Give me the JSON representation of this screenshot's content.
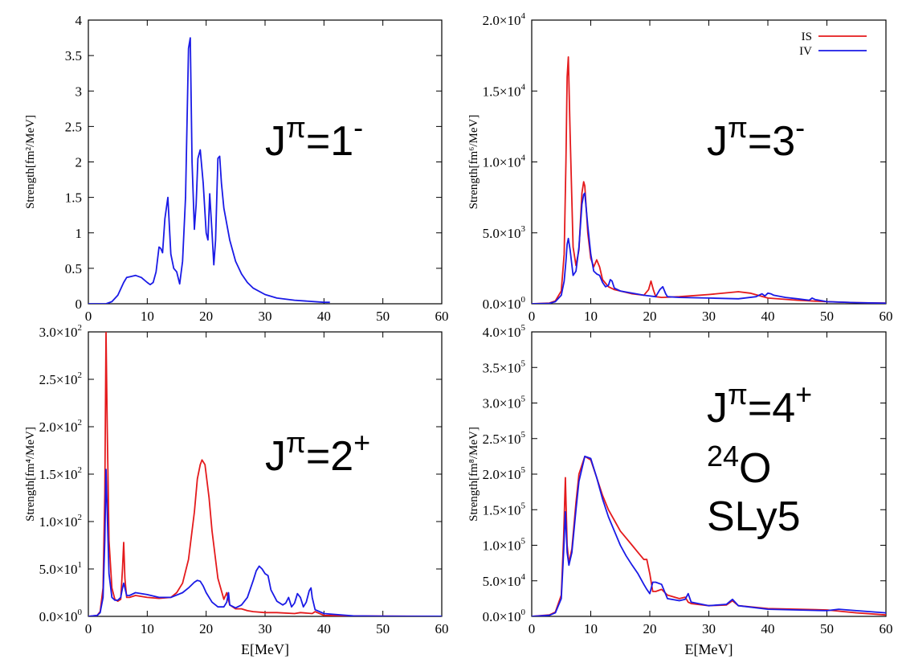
{
  "colors": {
    "IS": "#e41a1c",
    "IV": "#1a1ae6"
  },
  "chart_data": [
    {
      "type": "line",
      "annotation": {
        "main": "J",
        "sup1": "π",
        "eq": "=1",
        "sup2": "-"
      },
      "xlabel": "",
      "ylabel": "Strength[fm²/MeV]",
      "xlim": [
        0,
        60
      ],
      "ylim": [
        0,
        4
      ],
      "xticks": [
        0,
        10,
        20,
        30,
        40,
        50,
        60
      ],
      "yticks": [
        {
          "v": 0,
          "m": "0"
        },
        {
          "v": 0.5,
          "m": "0.5"
        },
        {
          "v": 1,
          "m": "1"
        },
        {
          "v": 1.5,
          "m": "1.5"
        },
        {
          "v": 2,
          "m": "2"
        },
        {
          "v": 2.5,
          "m": "2.5"
        },
        {
          "v": 3,
          "m": "3"
        },
        {
          "v": 3.5,
          "m": "3.5"
        },
        {
          "v": 4,
          "m": "4"
        }
      ],
      "legend": [],
      "series": [
        {
          "key": "IV",
          "x": [
            0,
            3,
            4,
            5,
            6,
            6.5,
            7,
            8,
            9,
            10,
            10.5,
            11,
            11.5,
            12,
            12.3,
            12.6,
            13,
            13.5,
            14,
            14.5,
            15,
            15.5,
            16,
            16.5,
            17,
            17.3,
            17.6,
            18,
            18.3,
            18.6,
            19,
            19.5,
            20,
            20.3,
            20.6,
            21,
            21.3,
            21.6,
            22,
            22.3,
            22.6,
            23,
            24,
            25,
            26,
            27,
            28,
            30,
            32,
            35,
            40,
            41
          ],
          "y": [
            0,
            0,
            0.03,
            0.12,
            0.3,
            0.37,
            0.38,
            0.4,
            0.37,
            0.3,
            0.27,
            0.3,
            0.45,
            0.8,
            0.78,
            0.72,
            1.2,
            1.5,
            0.7,
            0.5,
            0.45,
            0.28,
            0.6,
            1.5,
            3.6,
            3.75,
            2.0,
            1.05,
            1.4,
            2.05,
            2.17,
            1.7,
            1.0,
            0.9,
            1.55,
            1.0,
            0.55,
            0.9,
            2.05,
            2.08,
            1.7,
            1.35,
            0.9,
            0.6,
            0.42,
            0.3,
            0.22,
            0.13,
            0.08,
            0.05,
            0.02,
            0.02
          ]
        }
      ]
    },
    {
      "type": "line",
      "annotation": {
        "main": "J",
        "sup1": "π",
        "eq": "=3",
        "sup2": "-"
      },
      "xlabel": "",
      "ylabel": "Strength[fm⁶/MeV]",
      "xlim": [
        0,
        60
      ],
      "ylim": [
        0,
        20000
      ],
      "xticks": [
        0,
        10,
        20,
        30,
        40,
        50,
        60
      ],
      "yticks": [
        {
          "v": 0,
          "m": "0.0×10",
          "e": "0"
        },
        {
          "v": 5000,
          "m": "5.0×10",
          "e": "3"
        },
        {
          "v": 10000,
          "m": "1.0×10",
          "e": "4"
        },
        {
          "v": 15000,
          "m": "1.5×10",
          "e": "4"
        },
        {
          "v": 20000,
          "m": "2.0×10",
          "e": "4"
        }
      ],
      "legend": [
        "IS",
        "IV"
      ],
      "series": [
        {
          "key": "IS",
          "x": [
            0,
            3,
            4,
            5,
            5.5,
            5.8,
            6,
            6.2,
            6.5,
            7,
            7.5,
            8,
            8.5,
            8.8,
            9,
            9.5,
            10,
            10.5,
            11,
            11.5,
            12,
            13,
            14,
            15,
            17,
            19,
            19.8,
            20.2,
            20.6,
            21,
            22,
            25,
            30,
            35,
            37,
            40,
            45,
            50,
            55,
            60
          ],
          "y": [
            0,
            50,
            200,
            900,
            3500,
            10000,
            16000,
            17400,
            12000,
            4000,
            2700,
            3800,
            7800,
            8600,
            8300,
            5000,
            3200,
            2600,
            3100,
            2600,
            1700,
            1200,
            1000,
            900,
            700,
            600,
            1000,
            1600,
            1000,
            500,
            450,
            500,
            650,
            850,
            750,
            400,
            250,
            150,
            80,
            50
          ]
        },
        {
          "key": "IV",
          "x": [
            0,
            3,
            4,
            5,
            5.5,
            5.8,
            6,
            6.2,
            6.5,
            7,
            7.5,
            8,
            8.5,
            8.8,
            9,
            9.5,
            10,
            10.5,
            11,
            11.5,
            12,
            12.5,
            13,
            13.3,
            13.6,
            14,
            15,
            17,
            19,
            21,
            21.7,
            22.2,
            22.7,
            23,
            25,
            30,
            35,
            38,
            39,
            39.5,
            40,
            40.5,
            41,
            43,
            45,
            47,
            47.5,
            48,
            50,
            55,
            60
          ],
          "y": [
            0,
            30,
            150,
            600,
            1600,
            3000,
            4200,
            4600,
            3800,
            2000,
            2300,
            4000,
            7000,
            7700,
            7800,
            5500,
            3500,
            2300,
            2100,
            2000,
            1500,
            1200,
            1300,
            1700,
            1600,
            1100,
            900,
            750,
            600,
            500,
            1000,
            1200,
            700,
            500,
            450,
            400,
            350,
            500,
            700,
            550,
            750,
            700,
            600,
            450,
            350,
            250,
            400,
            300,
            150,
            80,
            40
          ]
        }
      ]
    },
    {
      "type": "line",
      "annotation": {
        "main": "J",
        "sup1": "π",
        "eq": "=2",
        "sup2": "+"
      },
      "xlabel": "E[MeV]",
      "ylabel": "Strength[fm⁴/MeV]",
      "xlim": [
        0,
        60
      ],
      "ylim": [
        0,
        300
      ],
      "xticks": [
        0,
        10,
        20,
        30,
        40,
        50,
        60
      ],
      "yticks": [
        {
          "v": 0,
          "m": "0.0×10",
          "e": "0"
        },
        {
          "v": 50,
          "m": "5.0×10",
          "e": "1"
        },
        {
          "v": 100,
          "m": "1.0×10",
          "e": "2"
        },
        {
          "v": 150,
          "m": "1.5×10",
          "e": "2"
        },
        {
          "v": 200,
          "m": "2.0×10",
          "e": "2"
        },
        {
          "v": 250,
          "m": "2.5×10",
          "e": "2"
        },
        {
          "v": 300,
          "m": "3.0×10",
          "e": "2"
        }
      ],
      "legend": [],
      "series": [
        {
          "key": "IS",
          "x": [
            0,
            1.5,
            2,
            2.5,
            2.8,
            3,
            3.2,
            3.5,
            4,
            4.5,
            5,
            5.5,
            5.8,
            6,
            6.2,
            6.5,
            7,
            8,
            10,
            12,
            14,
            15,
            16,
            17,
            18,
            18.5,
            19,
            19.3,
            19.8,
            20.5,
            21,
            22,
            23,
            23.5,
            24,
            25,
            26,
            27,
            28,
            30,
            32,
            35,
            36,
            38,
            38.5,
            40,
            45,
            50,
            60
          ],
          "y": [
            0,
            1,
            5,
            30,
            130,
            300,
            200,
            80,
            30,
            18,
            16,
            18,
            50,
            78,
            40,
            20,
            20,
            22,
            20,
            19,
            20,
            25,
            35,
            60,
            110,
            145,
            160,
            165,
            160,
            125,
            90,
            40,
            18,
            25,
            12,
            8,
            8,
            6,
            5,
            4,
            4,
            3,
            4,
            3,
            5,
            1,
            0.5,
            0.3,
            0.1
          ]
        },
        {
          "key": "IV",
          "x": [
            0,
            1.5,
            2,
            2.5,
            2.8,
            3,
            3.2,
            3.5,
            4,
            4.5,
            5,
            5.5,
            5.8,
            6,
            6.2,
            6.5,
            7,
            8,
            10,
            12,
            14,
            16,
            17,
            18,
            18.5,
            19,
            19.5,
            20,
            21,
            22,
            23,
            23.5,
            23.8,
            24,
            25,
            26,
            27,
            28,
            28.5,
            29,
            29.5,
            30,
            30.5,
            31,
            32,
            33,
            33.5,
            34,
            34.5,
            35,
            35.5,
            36,
            36.5,
            37,
            37.5,
            37.8,
            38,
            38.5,
            40,
            45,
            50,
            60
          ],
          "y": [
            0,
            1,
            4,
            20,
            80,
            155,
            110,
            45,
            20,
            17,
            17,
            20,
            30,
            35,
            30,
            22,
            22,
            25,
            23,
            20,
            20,
            25,
            30,
            36,
            38,
            37,
            32,
            25,
            15,
            10,
            10,
            15,
            25,
            12,
            9,
            12,
            20,
            38,
            48,
            53,
            50,
            45,
            43,
            28,
            16,
            12,
            14,
            20,
            10,
            14,
            24,
            20,
            10,
            15,
            27,
            30,
            20,
            7,
            3,
            0.5,
            0.2,
            0.1
          ]
        }
      ]
    },
    {
      "type": "line",
      "annotation": {
        "main": "J",
        "sup1": "π",
        "eq": "=4",
        "sup2": "+",
        "nucl_sup": "24",
        "nucl": "O",
        "force": "SLy5"
      },
      "xlabel": "E[MeV]",
      "ylabel": "Strength[fm⁸/MeV]",
      "xlim": [
        0,
        60
      ],
      "ylim": [
        0,
        400000
      ],
      "xticks": [
        0,
        10,
        20,
        30,
        40,
        50,
        60
      ],
      "yticks": [
        {
          "v": 0,
          "m": "0.0×10",
          "e": "0"
        },
        {
          "v": 50000,
          "m": "5.0×10",
          "e": "4"
        },
        {
          "v": 100000,
          "m": "1.0×10",
          "e": "5"
        },
        {
          "v": 150000,
          "m": "1.5×10",
          "e": "5"
        },
        {
          "v": 200000,
          "m": "2.0×10",
          "e": "5"
        },
        {
          "v": 250000,
          "m": "2.5×10",
          "e": "5"
        },
        {
          "v": 300000,
          "m": "3.0×10",
          "e": "5"
        },
        {
          "v": 350000,
          "m": "3.5×10",
          "e": "5"
        },
        {
          "v": 400000,
          "m": "4.0×10",
          "e": "5"
        }
      ],
      "legend": [],
      "series": [
        {
          "key": "IS",
          "x": [
            0,
            3,
            4,
            5,
            5.4,
            5.7,
            6,
            6.3,
            6.8,
            7.5,
            8,
            9,
            10,
            11,
            12,
            13,
            14,
            15,
            16,
            17,
            18,
            19,
            19.5,
            20,
            20.5,
            21,
            22,
            23,
            25,
            26,
            26.5,
            27,
            30,
            33,
            34,
            35,
            40,
            50,
            55,
            60
          ],
          "y": [
            0,
            2000,
            6000,
            30000,
            110000,
            195000,
            100000,
            75000,
            95000,
            160000,
            200000,
            225000,
            220000,
            195000,
            170000,
            150000,
            135000,
            120000,
            110000,
            100000,
            90000,
            80000,
            80000,
            60000,
            35000,
            35000,
            38000,
            30000,
            25000,
            27000,
            20000,
            18000,
            15000,
            16000,
            22000,
            15000,
            11000,
            9000,
            5000,
            2000
          ]
        },
        {
          "key": "IV",
          "x": [
            0,
            3,
            4,
            5,
            5.4,
            5.7,
            6,
            6.3,
            6.8,
            7.5,
            8,
            9,
            10,
            11,
            12,
            13,
            14,
            15,
            16,
            17,
            18,
            19,
            19.5,
            20,
            20.5,
            21,
            22,
            23,
            25,
            26,
            26.5,
            27,
            30,
            33,
            34,
            35,
            40,
            50,
            52,
            55,
            60
          ],
          "y": [
            0,
            1500,
            5000,
            25000,
            90000,
            147000,
            90000,
            72000,
            90000,
            150000,
            190000,
            225000,
            222000,
            195000,
            165000,
            140000,
            120000,
            100000,
            85000,
            72000,
            60000,
            45000,
            38000,
            32000,
            48000,
            48000,
            45000,
            25000,
            22000,
            24000,
            32000,
            20000,
            15000,
            17000,
            24000,
            15000,
            10000,
            8000,
            10000,
            8000,
            5000
          ]
        }
      ]
    }
  ]
}
